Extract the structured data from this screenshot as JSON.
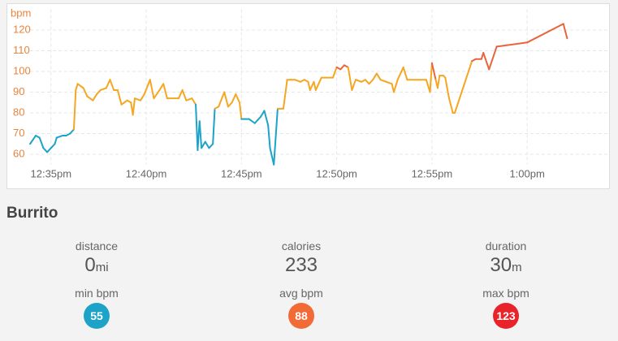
{
  "chart_data": {
    "type": "line",
    "y_label": "bpm",
    "x": [
      33.9,
      34.2,
      34.4,
      34.6,
      34.8,
      35.0,
      35.2,
      35.3,
      35.6,
      35.8,
      36.0,
      36.2,
      36.3,
      36.4,
      36.7,
      36.9,
      37.2,
      37.4,
      37.6,
      37.9,
      38.1,
      38.3,
      38.5,
      38.7,
      39.0,
      39.2,
      39.3,
      39.4,
      39.7,
      39.9,
      40.2,
      40.4,
      40.7,
      40.9,
      41.1,
      41.4,
      41.7,
      41.9,
      42.1,
      42.4,
      42.6,
      42.7,
      42.8,
      42.9,
      43.1,
      43.3,
      43.5,
      43.6,
      43.8,
      44.1,
      44.3,
      44.5,
      44.7,
      44.9,
      45.0,
      45.2,
      45.4,
      45.7,
      46.0,
      46.2,
      46.4,
      46.5,
      46.7,
      46.9,
      47.0,
      47.2,
      47.4,
      47.6,
      47.8,
      48.1,
      48.3,
      48.5,
      48.6,
      48.8,
      48.9,
      49.2,
      49.5,
      49.8,
      50.0,
      50.2,
      50.4,
      50.6,
      50.8,
      51.0,
      51.3,
      51.5,
      51.7,
      51.9,
      52.1,
      52.3,
      52.6,
      52.9,
      53.0,
      53.2,
      53.5,
      53.7,
      54.0,
      54.2,
      54.4,
      54.7,
      54.9,
      55.0,
      55.2,
      55.3,
      55.4,
      55.6,
      55.7,
      55.9,
      56.1,
      56.2,
      57.1,
      57.3,
      57.6,
      57.7,
      58.0,
      58.4,
      60.0,
      61.9,
      62.1
    ],
    "values": [
      65,
      69,
      68,
      63,
      61,
      63,
      65,
      68,
      69,
      69,
      70,
      72,
      91,
      94,
      92,
      88,
      86,
      89,
      91,
      92,
      96,
      91,
      91,
      84,
      86,
      85,
      79,
      87,
      86,
      89,
      96,
      87,
      91,
      94,
      87,
      87,
      87,
      91,
      86,
      87,
      84,
      62,
      76,
      63,
      66,
      63,
      65,
      82,
      83,
      90,
      83,
      85,
      89,
      85,
      77,
      77,
      77,
      75,
      78,
      81,
      74,
      63,
      55,
      82,
      82,
      82,
      96,
      96,
      96,
      95,
      96,
      95,
      91,
      95,
      91,
      97,
      97,
      97,
      102,
      101,
      103,
      102,
      91,
      96,
      95,
      96,
      94,
      96,
      99,
      96,
      95,
      94,
      90,
      96,
      102,
      96,
      96,
      96,
      96,
      96,
      90,
      104,
      96,
      92,
      98,
      98,
      97,
      87,
      80,
      80,
      105,
      106,
      106,
      109,
      101,
      112,
      114,
      123,
      116
    ],
    "zones": [
      {
        "below": 80,
        "color": "#1ea3c8"
      },
      {
        "below": 100,
        "color": "#f5a623"
      },
      {
        "color": "#e8643c"
      }
    ],
    "xlim": [
      33.9,
      64.3
    ],
    "xticks": [
      {
        "value": 35,
        "label": "12:35pm"
      },
      {
        "value": 40,
        "label": "12:40pm"
      },
      {
        "value": 45,
        "label": "12:45pm"
      },
      {
        "value": 50,
        "label": "12:50pm"
      },
      {
        "value": 55,
        "label": "12:55pm"
      },
      {
        "value": 60,
        "label": "1:00pm"
      }
    ],
    "ylim": [
      55,
      130
    ],
    "yticks": [
      60,
      70,
      80,
      90,
      100,
      110,
      120
    ],
    "grid": true
  },
  "workout": {
    "title": "Burrito",
    "stats": [
      {
        "label": "distance",
        "value": 0,
        "unit": "mi"
      },
      {
        "label": "calories",
        "value": 233
      },
      {
        "label": "duration",
        "value": 30,
        "unit": "m"
      }
    ],
    "heart_rate": [
      {
        "label": "min bpm",
        "value": 55,
        "color": "#1ea3c8"
      },
      {
        "label": "avg bpm",
        "value": 88,
        "color": "#f26a36"
      },
      {
        "label": "max bpm",
        "value": 123,
        "color": "#e8232a"
      }
    ]
  }
}
